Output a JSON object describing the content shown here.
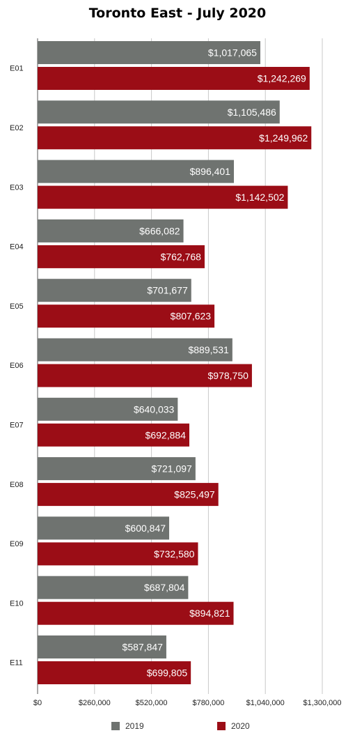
{
  "chart_data": {
    "type": "bar",
    "orientation": "horizontal",
    "title": "Toronto East - July 2020",
    "categories": [
      "E01",
      "E02",
      "E03",
      "E04",
      "E05",
      "E06",
      "E07",
      "E08",
      "E09",
      "E10",
      "E11"
    ],
    "series": [
      {
        "name": "2019",
        "color": "#6f7370",
        "values": [
          1017065,
          1105486,
          896401,
          666082,
          701677,
          889531,
          640033,
          721097,
          600847,
          687804,
          587847
        ],
        "labels": [
          "$1,017,065",
          "$1,105,486",
          "$896,401",
          "$666,082",
          "$701,677",
          "$889,531",
          "$640,033",
          "$721,097",
          "$600,847",
          "$687,804",
          "$587,847"
        ]
      },
      {
        "name": "2020",
        "color": "#9b0d16",
        "values": [
          1242269,
          1249962,
          1142502,
          762768,
          807623,
          978750,
          692884,
          825497,
          732580,
          894821,
          699805
        ],
        "labels": [
          "$1,242,269",
          "$1,249,962",
          "$1,142,502",
          "$762,768",
          "$807,623",
          "$978,750",
          "$692,884",
          "$825,497",
          "$732,580",
          "$894,821",
          "$699,805"
        ]
      }
    ],
    "xlim": [
      0,
      1300000
    ],
    "xticks": [
      0,
      260000,
      520000,
      780000,
      1040000,
      1300000
    ],
    "xtick_labels": [
      "$0",
      "$260,000",
      "$520,000",
      "$780,000",
      "$1,040,000",
      "$1,300,000"
    ],
    "grid": true,
    "legend_position": "bottom"
  }
}
